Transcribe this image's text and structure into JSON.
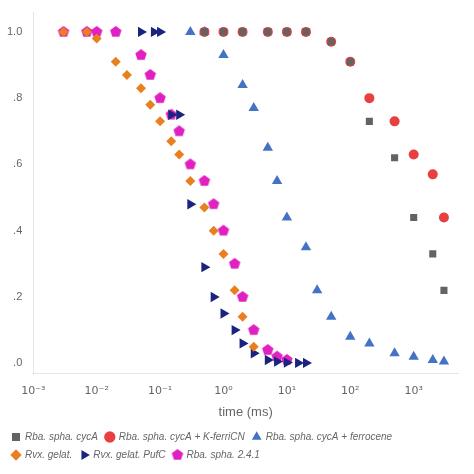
{
  "chart_data": {
    "type": "scatter",
    "xlabel": "time (ms)",
    "log": "x",
    "grid": false,
    "legend": "lower left",
    "xlim": [
      0.001,
      5000
    ],
    "ylim": [
      -0.03,
      1.06
    ],
    "xticks": [
      {
        "value": 0.001,
        "label": "10⁻³"
      },
      {
        "value": 0.01,
        "label": "10⁻²"
      },
      {
        "value": 0.1,
        "label": "10⁻¹"
      },
      {
        "value": 1,
        "label": "10⁰"
      },
      {
        "value": 10,
        "label": "10¹"
      },
      {
        "value": 100,
        "label": "10²"
      },
      {
        "value": 1000,
        "label": "10³"
      }
    ],
    "yticks": [
      {
        "value": 0.0,
        "label": ".0"
      },
      {
        "value": 0.2,
        "label": ".2"
      },
      {
        "value": 0.4,
        "label": ".4"
      },
      {
        "value": 0.6,
        "label": ".6"
      },
      {
        "value": 0.8,
        "label": ".8"
      },
      {
        "value": 1.0,
        "label": "1.0"
      }
    ],
    "series": [
      {
        "name": "Rba. spha. cycA",
        "color": "#636363",
        "marker": "square",
        "x": [
          0.5,
          1.0,
          2.0,
          5.0,
          10.0,
          20.0,
          50.0,
          100.0,
          200.0,
          500.0,
          1000.0,
          2000.0,
          3000.0
        ],
        "values": [
          1.0,
          1.0,
          1.0,
          1.0,
          1.0,
          1.0,
          0.97,
          0.91,
          0.73,
          0.62,
          0.44,
          0.33,
          0.22
        ]
      },
      {
        "name": "Rba. spha. cycA + K-ferriCN",
        "color": "#e84040",
        "marker": "circle",
        "x": [
          0.5,
          1.0,
          2.0,
          5.0,
          10.0,
          20.0,
          50.0,
          100.0,
          200.0,
          500.0,
          1000.0,
          2000.0,
          3000.0
        ],
        "values": [
          1.0,
          1.0,
          1.0,
          1.0,
          1.0,
          1.0,
          0.97,
          0.91,
          0.8,
          0.73,
          0.63,
          0.57,
          0.44
        ]
      },
      {
        "name": "Rba. spha. cycA + ferrocene",
        "color": "#4472c4",
        "marker": "triangle",
        "x": [
          0.3,
          0.5,
          1.0,
          2.0,
          3.0,
          5.0,
          7.0,
          10.0,
          20.0,
          30.0,
          50.0,
          100.0,
          200.0,
          500.0,
          1000.0,
          2000.0,
          3000.0
        ],
        "values": [
          1.0,
          1.0,
          0.93,
          0.84,
          0.77,
          0.65,
          0.55,
          0.44,
          0.35,
          0.22,
          0.14,
          0.08,
          0.06,
          0.03,
          0.02,
          0.01,
          0.005
        ]
      },
      {
        "name": "Rvx. gelat.",
        "color": "#e88020",
        "marker": "diamond",
        "x": [
          0.003,
          0.007,
          0.01,
          0.02,
          0.03,
          0.05,
          0.07,
          0.1,
          0.15,
          0.2,
          0.3,
          0.5,
          0.7,
          1.0,
          1.5,
          2.0,
          3.0
        ],
        "values": [
          1.0,
          1.0,
          0.98,
          0.91,
          0.87,
          0.83,
          0.78,
          0.73,
          0.67,
          0.63,
          0.55,
          0.47,
          0.4,
          0.33,
          0.22,
          0.14,
          0.05
        ]
      },
      {
        "name": "Rvx. gelat. PufC",
        "color": "#1a237e",
        "marker": "triangle-right",
        "x": [
          0.05,
          0.08,
          0.1,
          0.15,
          0.2,
          0.3,
          0.5,
          0.7,
          1.0,
          1.5,
          2.0,
          3.0,
          5.0,
          7.0,
          10.0,
          15.0,
          20.0
        ],
        "values": [
          1.0,
          1.0,
          1.0,
          0.75,
          0.75,
          0.48,
          0.29,
          0.2,
          0.15,
          0.1,
          0.06,
          0.03,
          0.01,
          0.005,
          0.002,
          0.001,
          0.001
        ]
      },
      {
        "name": "Rba. spha. 2.4.1",
        "color": "#e020c0",
        "marker": "pentagon",
        "x": [
          0.003,
          0.007,
          0.01,
          0.02,
          0.05,
          0.07,
          0.1,
          0.15,
          0.2,
          0.3,
          0.5,
          0.7,
          1.0,
          1.5,
          2.0,
          3.0,
          5.0,
          7.0,
          10.0
        ],
        "values": [
          1.0,
          1.0,
          1.0,
          1.0,
          0.93,
          0.87,
          0.8,
          0.75,
          0.7,
          0.6,
          0.55,
          0.48,
          0.4,
          0.3,
          0.2,
          0.1,
          0.04,
          0.02,
          0.01
        ]
      }
    ]
  }
}
